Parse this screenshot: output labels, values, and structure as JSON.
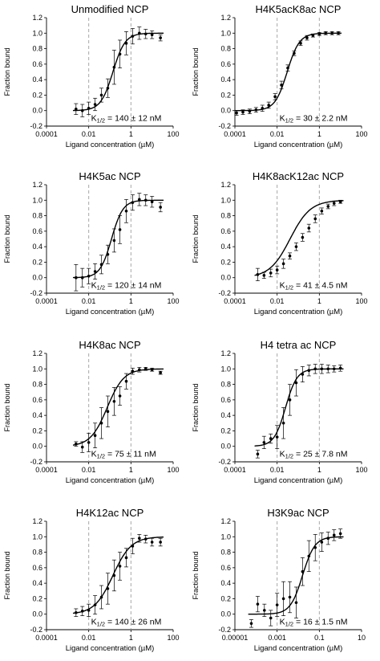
{
  "chart_data": [
    {
      "type": "scatter",
      "title": "Unmodified NCP",
      "xlabel": "Ligand concentration (µM)",
      "ylabel": "Fraction bound",
      "x_scale": "log",
      "xlim": [
        0.0001,
        100
      ],
      "xticks": [
        "0.0001",
        "0.01",
        "1",
        "100"
      ],
      "ylim": [
        -0.2,
        1.2
      ],
      "yticks": [
        "-0.2",
        "0.0",
        "0.2",
        "0.4",
        "0.6",
        "0.8",
        "1.0",
        "1.2"
      ],
      "vlines": [
        0.01,
        1
      ],
      "annotation": {
        "pre": "K",
        "sub": "1/2",
        "post": " = 140 ± 12 nM"
      },
      "k_half_uM": 0.14,
      "hill": 1.5,
      "points": [
        {
          "x": 0.0025,
          "y": 0.02,
          "err": 0.07
        },
        {
          "x": 0.005,
          "y": 0.0,
          "err": 0.08
        },
        {
          "x": 0.01,
          "y": 0.03,
          "err": 0.08
        },
        {
          "x": 0.02,
          "y": 0.08,
          "err": 0.08
        },
        {
          "x": 0.04,
          "y": 0.2,
          "err": 0.09
        },
        {
          "x": 0.08,
          "y": 0.29,
          "err": 0.12
        },
        {
          "x": 0.16,
          "y": 0.56,
          "err": 0.22
        },
        {
          "x": 0.3,
          "y": 0.73,
          "err": 0.18
        },
        {
          "x": 0.6,
          "y": 0.87,
          "err": 0.15
        },
        {
          "x": 1.2,
          "y": 0.96,
          "err": 0.1
        },
        {
          "x": 2.5,
          "y": 1.0,
          "err": 0.08
        },
        {
          "x": 5,
          "y": 0.99,
          "err": 0.06
        },
        {
          "x": 10,
          "y": 0.98,
          "err": 0.05
        },
        {
          "x": 25,
          "y": 0.94,
          "err": 0.04
        }
      ]
    },
    {
      "type": "scatter",
      "title": "H4K5acK8ac NCP",
      "xlabel": "Ligand concentration (µM)",
      "ylabel": "Fraction bound",
      "x_scale": "log",
      "xlim": [
        0.0001,
        100
      ],
      "xticks": [
        "0.0001",
        "0.01",
        "1",
        "100"
      ],
      "ylim": [
        -0.2,
        1.2
      ],
      "yticks": [
        "-0.2",
        "0.0",
        "0.2",
        "0.4",
        "0.6",
        "0.8",
        "1.0",
        "1.2"
      ],
      "vlines": [
        0.01,
        1
      ],
      "annotation": {
        "pre": "K",
        "sub": "1/2",
        "post": " = 30 ± 2.2 nM"
      },
      "k_half_uM": 0.03,
      "hill": 1.5,
      "points": [
        {
          "x": 0.00012,
          "y": -0.03,
          "err": 0.03
        },
        {
          "x": 0.00024,
          "y": -0.02,
          "err": 0.03
        },
        {
          "x": 0.0005,
          "y": -0.01,
          "err": 0.03
        },
        {
          "x": 0.001,
          "y": 0.01,
          "err": 0.03
        },
        {
          "x": 0.002,
          "y": 0.03,
          "err": 0.04
        },
        {
          "x": 0.004,
          "y": 0.07,
          "err": 0.04
        },
        {
          "x": 0.008,
          "y": 0.18,
          "err": 0.04
        },
        {
          "x": 0.016,
          "y": 0.33,
          "err": 0.05
        },
        {
          "x": 0.032,
          "y": 0.55,
          "err": 0.04
        },
        {
          "x": 0.064,
          "y": 0.74,
          "err": 0.03
        },
        {
          "x": 0.13,
          "y": 0.87,
          "err": 0.03
        },
        {
          "x": 0.26,
          "y": 0.94,
          "err": 0.03
        },
        {
          "x": 0.5,
          "y": 0.97,
          "err": 0.02
        },
        {
          "x": 1,
          "y": 0.99,
          "err": 0.02
        },
        {
          "x": 2,
          "y": 1.0,
          "err": 0.02
        },
        {
          "x": 4,
          "y": 1.0,
          "err": 0.02
        },
        {
          "x": 8,
          "y": 1.0,
          "err": 0.02
        }
      ]
    },
    {
      "type": "scatter",
      "title": "H4K5ac NCP",
      "xlabel": "Ligand concentration (µM)",
      "ylabel": "Fraction bound",
      "x_scale": "log",
      "xlim": [
        0.0001,
        100
      ],
      "xticks": [
        "0.0001",
        "0.01",
        "1",
        "100"
      ],
      "ylim": [
        -0.2,
        1.2
      ],
      "yticks": [
        "-0.2",
        "0.0",
        "0.2",
        "0.4",
        "0.6",
        "0.8",
        "1.0",
        "1.2"
      ],
      "vlines": [
        0.01,
        1
      ],
      "annotation": {
        "pre": "K",
        "sub": "1/2",
        "post": " = 120 ± 14 nM"
      },
      "k_half_uM": 0.12,
      "hill": 1.6,
      "points": [
        {
          "x": 0.0025,
          "y": 0.0,
          "err": 0.17
        },
        {
          "x": 0.005,
          "y": 0.0,
          "err": 0.12
        },
        {
          "x": 0.01,
          "y": 0.02,
          "err": 0.1
        },
        {
          "x": 0.02,
          "y": 0.08,
          "err": 0.1
        },
        {
          "x": 0.04,
          "y": 0.17,
          "err": 0.12
        },
        {
          "x": 0.08,
          "y": 0.3,
          "err": 0.12
        },
        {
          "x": 0.16,
          "y": 0.48,
          "err": 0.15
        },
        {
          "x": 0.3,
          "y": 0.62,
          "err": 0.18
        },
        {
          "x": 0.6,
          "y": 0.86,
          "err": 0.15
        },
        {
          "x": 1.2,
          "y": 0.97,
          "err": 0.1
        },
        {
          "x": 2.5,
          "y": 1.01,
          "err": 0.08
        },
        {
          "x": 5,
          "y": 1.0,
          "err": 0.07
        },
        {
          "x": 10,
          "y": 0.98,
          "err": 0.07
        },
        {
          "x": 25,
          "y": 0.91,
          "err": 0.06
        }
      ]
    },
    {
      "type": "scatter",
      "title": "H4K8acK12ac NCP",
      "xlabel": "Ligand concentration (µM)",
      "ylabel": "Fraction bound",
      "x_scale": "log",
      "xlim": [
        0.0001,
        100
      ],
      "xticks": [
        "0.0001",
        "0.01",
        "1",
        "100"
      ],
      "ylim": [
        -0.2,
        1.2
      ],
      "yticks": [
        "-0.2",
        "0.0",
        "0.2",
        "0.4",
        "0.6",
        "0.8",
        "1.0",
        "1.2"
      ],
      "vlines": [
        0.01,
        1
      ],
      "annotation": {
        "pre": "K",
        "sub": "1/2",
        "post": " = 41 ± 4.5 nM"
      },
      "k_half_uM": 0.041,
      "hill": 0.9,
      "points": [
        {
          "x": 0.0012,
          "y": 0.04,
          "err": 0.08
        },
        {
          "x": 0.0024,
          "y": 0.03,
          "err": 0.04
        },
        {
          "x": 0.005,
          "y": 0.06,
          "err": 0.05
        },
        {
          "x": 0.01,
          "y": 0.1,
          "err": 0.05
        },
        {
          "x": 0.02,
          "y": 0.18,
          "err": 0.06
        },
        {
          "x": 0.04,
          "y": 0.28,
          "err": 0.04
        },
        {
          "x": 0.08,
          "y": 0.4,
          "err": 0.05
        },
        {
          "x": 0.16,
          "y": 0.52,
          "err": 0.05
        },
        {
          "x": 0.32,
          "y": 0.64,
          "err": 0.05
        },
        {
          "x": 0.64,
          "y": 0.76,
          "err": 0.05
        },
        {
          "x": 1.3,
          "y": 0.86,
          "err": 0.04
        },
        {
          "x": 2.6,
          "y": 0.92,
          "err": 0.03
        },
        {
          "x": 5,
          "y": 0.96,
          "err": 0.03
        },
        {
          "x": 10,
          "y": 0.98,
          "err": 0.02
        }
      ]
    },
    {
      "type": "scatter",
      "title": "H4K8ac NCP",
      "xlabel": "Ligand concentration (µM)",
      "ylabel": "Fraction bound",
      "x_scale": "log",
      "xlim": [
        0.0001,
        100
      ],
      "xticks": [
        "0.0001",
        "0.01",
        "1",
        "100"
      ],
      "ylim": [
        -0.2,
        1.2
      ],
      "yticks": [
        "-0.2",
        "0.0",
        "0.2",
        "0.4",
        "0.6",
        "0.8",
        "1.0",
        "1.2"
      ],
      "vlines": [
        0.01,
        1
      ],
      "annotation": {
        "pre": "K",
        "sub": "1/2",
        "post": " = 75 ± 11 nM"
      },
      "k_half_uM": 0.075,
      "hill": 1.1,
      "points": [
        {
          "x": 0.0025,
          "y": 0.03,
          "err": 0.03
        },
        {
          "x": 0.005,
          "y": -0.01,
          "err": 0.07
        },
        {
          "x": 0.01,
          "y": 0.05,
          "err": 0.12
        },
        {
          "x": 0.02,
          "y": 0.14,
          "err": 0.16
        },
        {
          "x": 0.04,
          "y": 0.3,
          "err": 0.2
        },
        {
          "x": 0.08,
          "y": 0.45,
          "err": 0.2
        },
        {
          "x": 0.16,
          "y": 0.58,
          "err": 0.18
        },
        {
          "x": 0.3,
          "y": 0.65,
          "err": 0.12
        },
        {
          "x": 0.6,
          "y": 0.84,
          "err": 0.1
        },
        {
          "x": 1.2,
          "y": 0.97,
          "err": 0.04
        },
        {
          "x": 2.5,
          "y": 0.99,
          "err": 0.03
        },
        {
          "x": 5,
          "y": 1.0,
          "err": 0.02
        },
        {
          "x": 10,
          "y": 0.99,
          "err": 0.02
        },
        {
          "x": 25,
          "y": 0.95,
          "err": 0.02
        }
      ]
    },
    {
      "type": "scatter",
      "title": "H4 tetra ac NCP",
      "xlabel": "Ligand concentration (µM)",
      "ylabel": "Fraction bound",
      "x_scale": "log",
      "xlim": [
        0.0001,
        100
      ],
      "xticks": [
        "0.0001",
        "0.01",
        "1",
        "100"
      ],
      "ylim": [
        -0.2,
        1.2
      ],
      "yticks": [
        "-0.2",
        "0.0",
        "0.2",
        "0.4",
        "0.6",
        "0.8",
        "1.0",
        "1.2"
      ],
      "vlines": [
        0.01,
        1
      ],
      "annotation": {
        "pre": "K",
        "sub": "1/2",
        "post": " = 25 ± 7.8 nM"
      },
      "k_half_uM": 0.025,
      "hill": 1.6,
      "points": [
        {
          "x": 0.0012,
          "y": -0.1,
          "err": 0.05
        },
        {
          "x": 0.0024,
          "y": 0.05,
          "err": 0.08
        },
        {
          "x": 0.005,
          "y": 0.1,
          "err": 0.06
        },
        {
          "x": 0.01,
          "y": 0.12,
          "err": 0.15
        },
        {
          "x": 0.02,
          "y": 0.3,
          "err": 0.2
        },
        {
          "x": 0.04,
          "y": 0.6,
          "err": 0.2
        },
        {
          "x": 0.08,
          "y": 0.82,
          "err": 0.17
        },
        {
          "x": 0.16,
          "y": 0.93,
          "err": 0.1
        },
        {
          "x": 0.32,
          "y": 0.98,
          "err": 0.07
        },
        {
          "x": 0.64,
          "y": 1.0,
          "err": 0.06
        },
        {
          "x": 1.3,
          "y": 1.0,
          "err": 0.06
        },
        {
          "x": 2.6,
          "y": 1.0,
          "err": 0.05
        },
        {
          "x": 5,
          "y": 1.0,
          "err": 0.04
        },
        {
          "x": 10,
          "y": 1.01,
          "err": 0.04
        }
      ]
    },
    {
      "type": "scatter",
      "title": "H4K12ac NCP",
      "xlabel": "Ligand concentration (µM)",
      "ylabel": "Fraction bound",
      "x_scale": "log",
      "xlim": [
        0.0001,
        100
      ],
      "xticks": [
        "0.0001",
        "0.01",
        "1",
        "100"
      ],
      "ylim": [
        -0.2,
        1.2
      ],
      "yticks": [
        "-0.2",
        "0.0",
        "0.2",
        "0.4",
        "0.6",
        "0.8",
        "1.0",
        "1.2"
      ],
      "vlines": [
        0.01,
        1
      ],
      "annotation": {
        "pre": "K",
        "sub": "1/2",
        "post": " = 140 ± 26 nM"
      },
      "k_half_uM": 0.14,
      "hill": 1.0,
      "points": [
        {
          "x": 0.0025,
          "y": 0.02,
          "err": 0.05
        },
        {
          "x": 0.005,
          "y": 0.04,
          "err": 0.06
        },
        {
          "x": 0.01,
          "y": 0.05,
          "err": 0.08
        },
        {
          "x": 0.02,
          "y": 0.12,
          "err": 0.12
        },
        {
          "x": 0.04,
          "y": 0.22,
          "err": 0.15
        },
        {
          "x": 0.08,
          "y": 0.33,
          "err": 0.2
        },
        {
          "x": 0.16,
          "y": 0.5,
          "err": 0.2
        },
        {
          "x": 0.3,
          "y": 0.62,
          "err": 0.18
        },
        {
          "x": 0.6,
          "y": 0.73,
          "err": 0.12
        },
        {
          "x": 1.2,
          "y": 0.88,
          "err": 0.1
        },
        {
          "x": 2.5,
          "y": 0.98,
          "err": 0.05
        },
        {
          "x": 5,
          "y": 0.97,
          "err": 0.05
        },
        {
          "x": 10,
          "y": 0.93,
          "err": 0.05
        },
        {
          "x": 25,
          "y": 0.93,
          "err": 0.05
        }
      ]
    },
    {
      "type": "scatter",
      "title": "H3K9ac NCP",
      "xlabel": "Ligand concentration (µM)",
      "ylabel": "Fraction bound",
      "x_scale": "log",
      "xlim": [
        1e-05,
        10
      ],
      "xticks": [
        "0.00001",
        "0.001",
        "0.1",
        "10"
      ],
      "ylim": [
        -0.2,
        1.2
      ],
      "yticks": [
        "-0.2",
        "0.0",
        "0.2",
        "0.4",
        "0.6",
        "0.8",
        "1.0",
        "1.2"
      ],
      "vlines": [
        0.001,
        0.1
      ],
      "annotation": {
        "pre": "K",
        "sub": "1/2",
        "post": " = 16 ± 1.5 nM"
      },
      "k_half_uM": 0.016,
      "hill": 1.5,
      "points": [
        {
          "x": 6e-05,
          "y": -0.12,
          "err": 0.05
        },
        {
          "x": 0.00012,
          "y": 0.13,
          "err": 0.1
        },
        {
          "x": 0.00025,
          "y": 0.05,
          "err": 0.08
        },
        {
          "x": 0.0005,
          "y": -0.05,
          "err": 0.1
        },
        {
          "x": 0.001,
          "y": 0.12,
          "err": 0.15
        },
        {
          "x": 0.002,
          "y": 0.2,
          "err": 0.22
        },
        {
          "x": 0.004,
          "y": 0.22,
          "err": 0.2
        },
        {
          "x": 0.008,
          "y": 0.15,
          "err": 0.2
        },
        {
          "x": 0.016,
          "y": 0.55,
          "err": 0.18
        },
        {
          "x": 0.032,
          "y": 0.75,
          "err": 0.2
        },
        {
          "x": 0.064,
          "y": 0.86,
          "err": 0.17
        },
        {
          "x": 0.13,
          "y": 0.93,
          "err": 0.12
        },
        {
          "x": 0.26,
          "y": 0.98,
          "err": 0.08
        },
        {
          "x": 0.5,
          "y": 1.02,
          "err": 0.07
        },
        {
          "x": 1,
          "y": 1.04,
          "err": 0.06
        }
      ]
    }
  ]
}
